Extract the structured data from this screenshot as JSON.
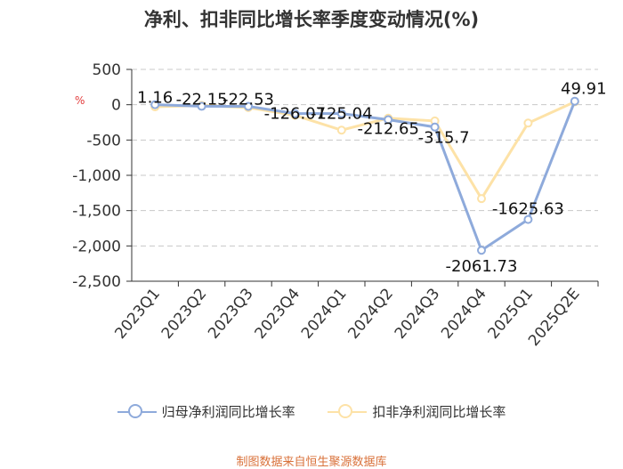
{
  "chart_data": {
    "type": "line",
    "title": "净利、扣非同比增长率季度变动情况(%)",
    "unit": "%",
    "categories": [
      "2023Q1",
      "2023Q2",
      "2023Q3",
      "2023Q4",
      "2024Q1",
      "2024Q2",
      "2024Q3",
      "2024Q4",
      "2025Q1",
      "2025Q2E"
    ],
    "series": [
      {
        "name": "归母净利润同比增长率",
        "color": "#8eaadb",
        "values": [
          1.16,
          -22.15,
          -22.53,
          -126.07,
          -125.04,
          -212.65,
          -315.7,
          -2061.73,
          -1625.63,
          49.91
        ]
      },
      {
        "name": "扣非净利润同比增长率",
        "color": "#fde2a7",
        "values": [
          -30,
          -10,
          -40,
          -150,
          -360,
          -190,
          -230,
          -1330,
          -260,
          40
        ]
      }
    ],
    "point_labels": [
      "1.16",
      "-22.15",
      "-22.53",
      "-126.07",
      "-125.04",
      "-212.65",
      "-315.7",
      "-2061.73",
      "-1625.63",
      "49.91"
    ],
    "yticks": [
      "500",
      "0",
      "-500",
      "-1,000",
      "-1,500",
      "-2,000",
      "-2,500"
    ],
    "ylim": [
      -2500,
      500
    ],
    "grid": true,
    "legend_position": "bottom"
  },
  "source": "制图数据来自恒生聚源数据库"
}
